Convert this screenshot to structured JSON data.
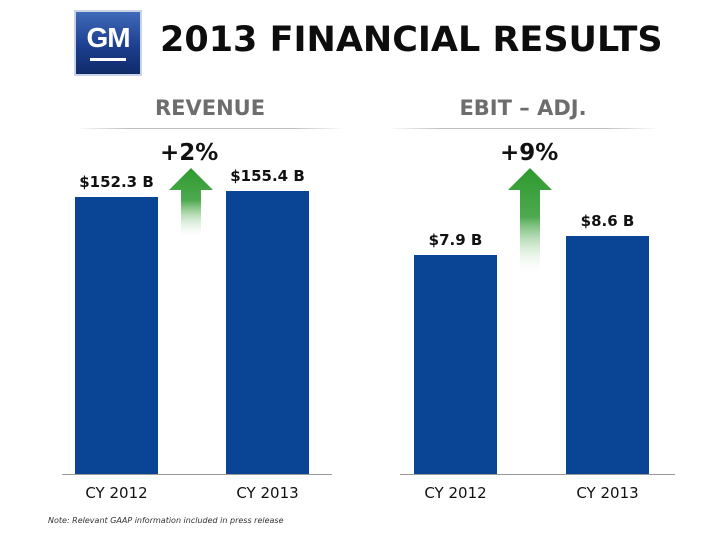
{
  "logo": {
    "text": "GM"
  },
  "title": "2013 FINANCIAL RESULTS",
  "chart_data": [
    {
      "type": "bar",
      "title": "REVENUE",
      "categories": [
        "CY 2012",
        "CY 2013"
      ],
      "values": [
        152.3,
        155.4
      ],
      "value_labels": [
        "$152.3 B",
        "$155.4 B"
      ],
      "unit": "billion USD",
      "ylim": [
        0,
        190
      ],
      "growth_label": "+2%",
      "growth_arrow_color": "#2e9a2e",
      "bar_color": "#0a4595"
    },
    {
      "type": "bar",
      "title": "EBIT – ADJ.",
      "categories": [
        "CY 2012",
        "CY 2013"
      ],
      "values": [
        7.9,
        8.6
      ],
      "value_labels": [
        "$7.9 B",
        "$8.6 B"
      ],
      "unit": "billion USD",
      "ylim": [
        0,
        12.5
      ],
      "growth_label": "+9%",
      "growth_arrow_color": "#2e9a2e",
      "bar_color": "#0a4595"
    }
  ],
  "note": "Note: Relevant GAAP information included in press release"
}
